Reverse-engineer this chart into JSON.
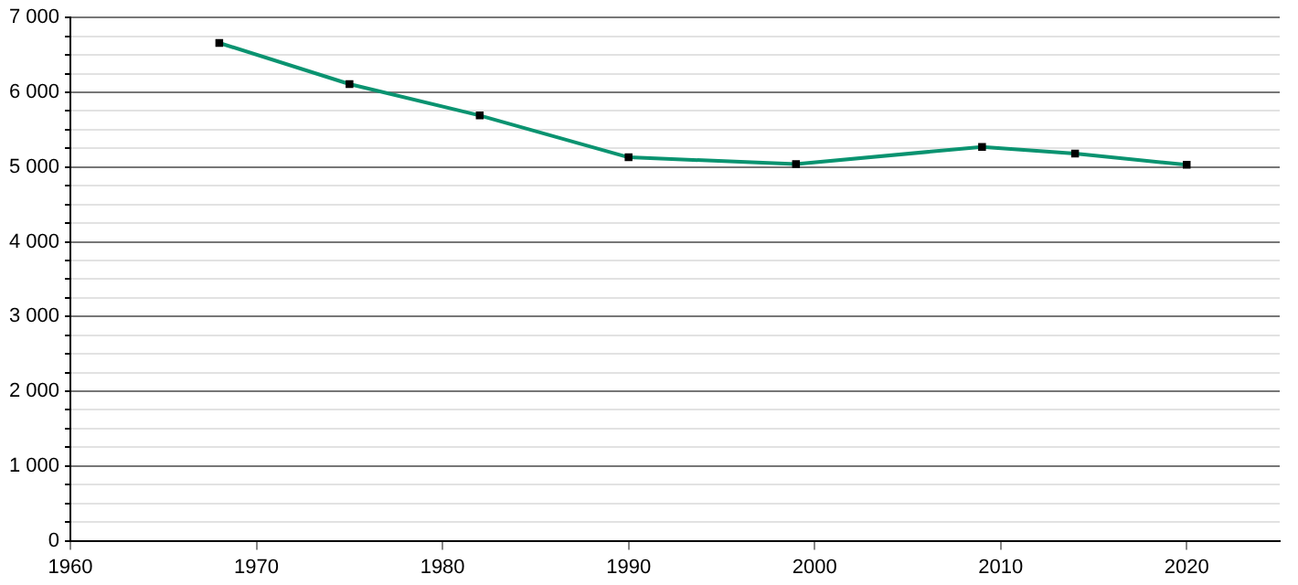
{
  "chart_data": {
    "type": "line",
    "x": [
      1968,
      1975,
      1982,
      1990,
      1999,
      2009,
      2014,
      2020
    ],
    "series": [
      {
        "color": "#0a9370",
        "values": [
          6660,
          6110,
          5690,
          5130,
          5040,
          5270,
          5180,
          5030
        ]
      }
    ],
    "xlim": [
      1960,
      2025
    ],
    "xticks": [
      1960,
      1970,
      1980,
      1990,
      2000,
      2010,
      2020
    ],
    "ylim": [
      0,
      7000
    ],
    "yticks": [
      {
        "value": 0,
        "label": "0"
      },
      {
        "value": 250,
        "label": null
      },
      {
        "value": 500,
        "label": null
      },
      {
        "value": 750,
        "label": null
      },
      {
        "value": 1000,
        "label": "1 000"
      },
      {
        "value": 1250,
        "label": null
      },
      {
        "value": 1500,
        "label": null
      },
      {
        "value": 1750,
        "label": null
      },
      {
        "value": 2000,
        "label": "2 000"
      },
      {
        "value": 2250,
        "label": null
      },
      {
        "value": 2500,
        "label": null
      },
      {
        "value": 2750,
        "label": null
      },
      {
        "value": 3000,
        "label": "3 000"
      },
      {
        "value": 3250,
        "label": null
      },
      {
        "value": 3500,
        "label": null
      },
      {
        "value": 3750,
        "label": null
      },
      {
        "value": 4000,
        "label": "4 000"
      },
      {
        "value": 4250,
        "label": null
      },
      {
        "value": 4500,
        "label": null
      },
      {
        "value": 4750,
        "label": null
      },
      {
        "value": 5000,
        "label": "5 000"
      },
      {
        "value": 5250,
        "label": null
      },
      {
        "value": 5500,
        "label": null
      },
      {
        "value": 5750,
        "label": null
      },
      {
        "value": 6000,
        "label": "6 000"
      },
      {
        "value": 6250,
        "label": null
      },
      {
        "value": 6500,
        "label": null
      },
      {
        "value": 6750,
        "label": null
      },
      {
        "value": 7000,
        "label": "7 000"
      }
    ],
    "grid": "y",
    "marker": "square",
    "line_style": "solid"
  }
}
